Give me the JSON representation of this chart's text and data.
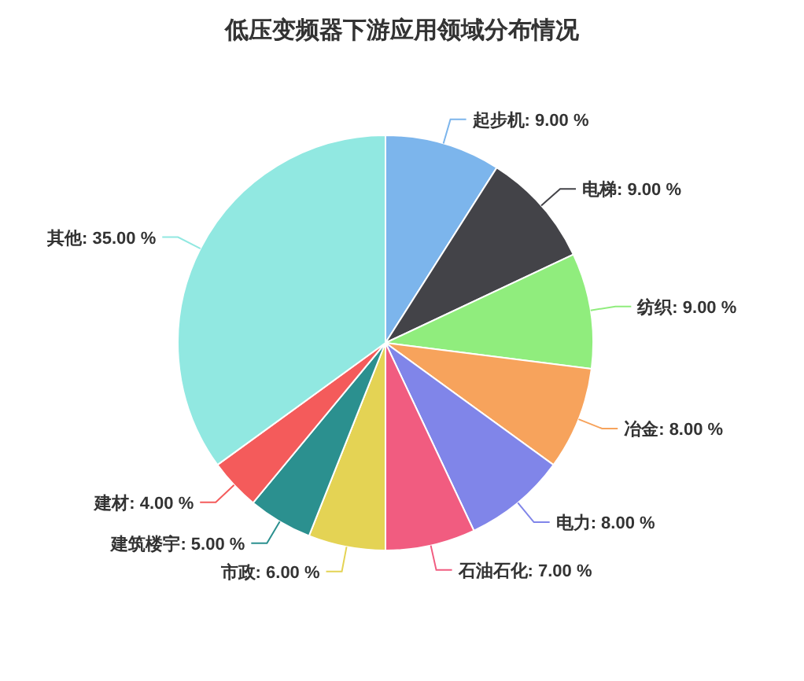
{
  "chart_data": {
    "type": "pie",
    "title": "低压变频器下游应用领域分布情况",
    "categories": [
      "起步机",
      "电梯",
      "纺织",
      "冶金",
      "电力",
      "石油石化",
      "市政",
      "建筑楼宇",
      "建材",
      "其他"
    ],
    "values": [
      9,
      9,
      9,
      8,
      8,
      7,
      6,
      5,
      4,
      35
    ],
    "value_labels": [
      "9.00 %",
      "9.00 %",
      "9.00 %",
      "8.00 %",
      "8.00 %",
      "7.00 %",
      "6.00 %",
      "5.00 %",
      "4.00 %",
      "35.00 %"
    ],
    "colors": [
      "#7cb5ec",
      "#434348",
      "#90ed7d",
      "#f7a35c",
      "#8085e9",
      "#f15c80",
      "#e4d354",
      "#2b908f",
      "#f45b5b",
      "#91e8e1"
    ],
    "data_labels": true
  }
}
